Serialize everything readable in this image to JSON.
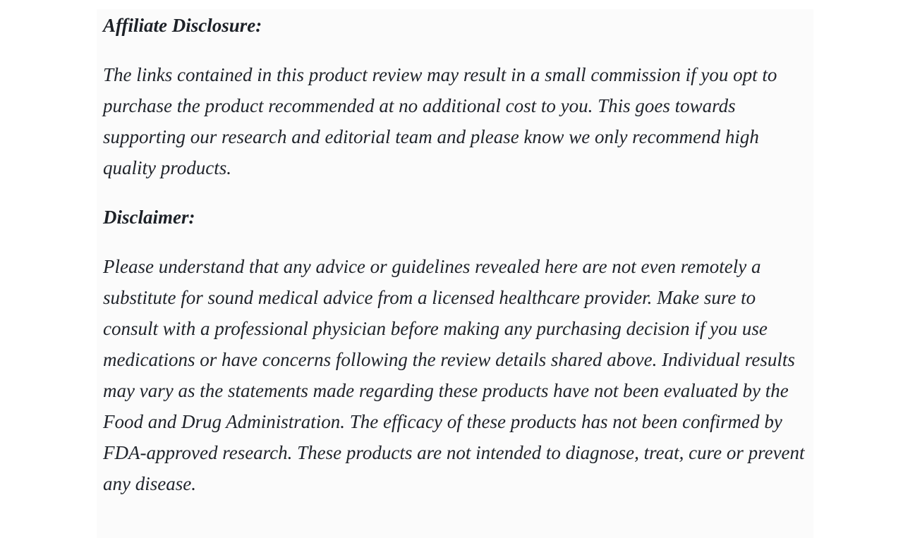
{
  "page": {
    "background_color": "#ffffff",
    "content_background_color": "#fbfbfb",
    "text_color": "#20242b"
  },
  "article": {
    "sections": [
      {
        "heading": "Affiliate Disclosure:",
        "body": "The links contained in this product review may result in a small commission if you opt to purchase the product recommended at no additional cost to you. This goes towards supporting our research and editorial team and please know we only recommend high quality products."
      },
      {
        "heading": "Disclaimer:",
        "body": "Please understand that any advice or guidelines revealed here are not even remotely a substitute for sound medical advice from a licensed healthcare provider. Make sure to consult with a professional physician before making any purchasing decision if you use medications or have concerns following the review details shared above. Individual results may vary as the statements made regarding these products have not been evaluated by the Food and Drug Administration. The efficacy of these products has not been confirmed by FDA-approved research. These products are not intended to diagnose, treat, cure or prevent any disease."
      }
    ]
  }
}
